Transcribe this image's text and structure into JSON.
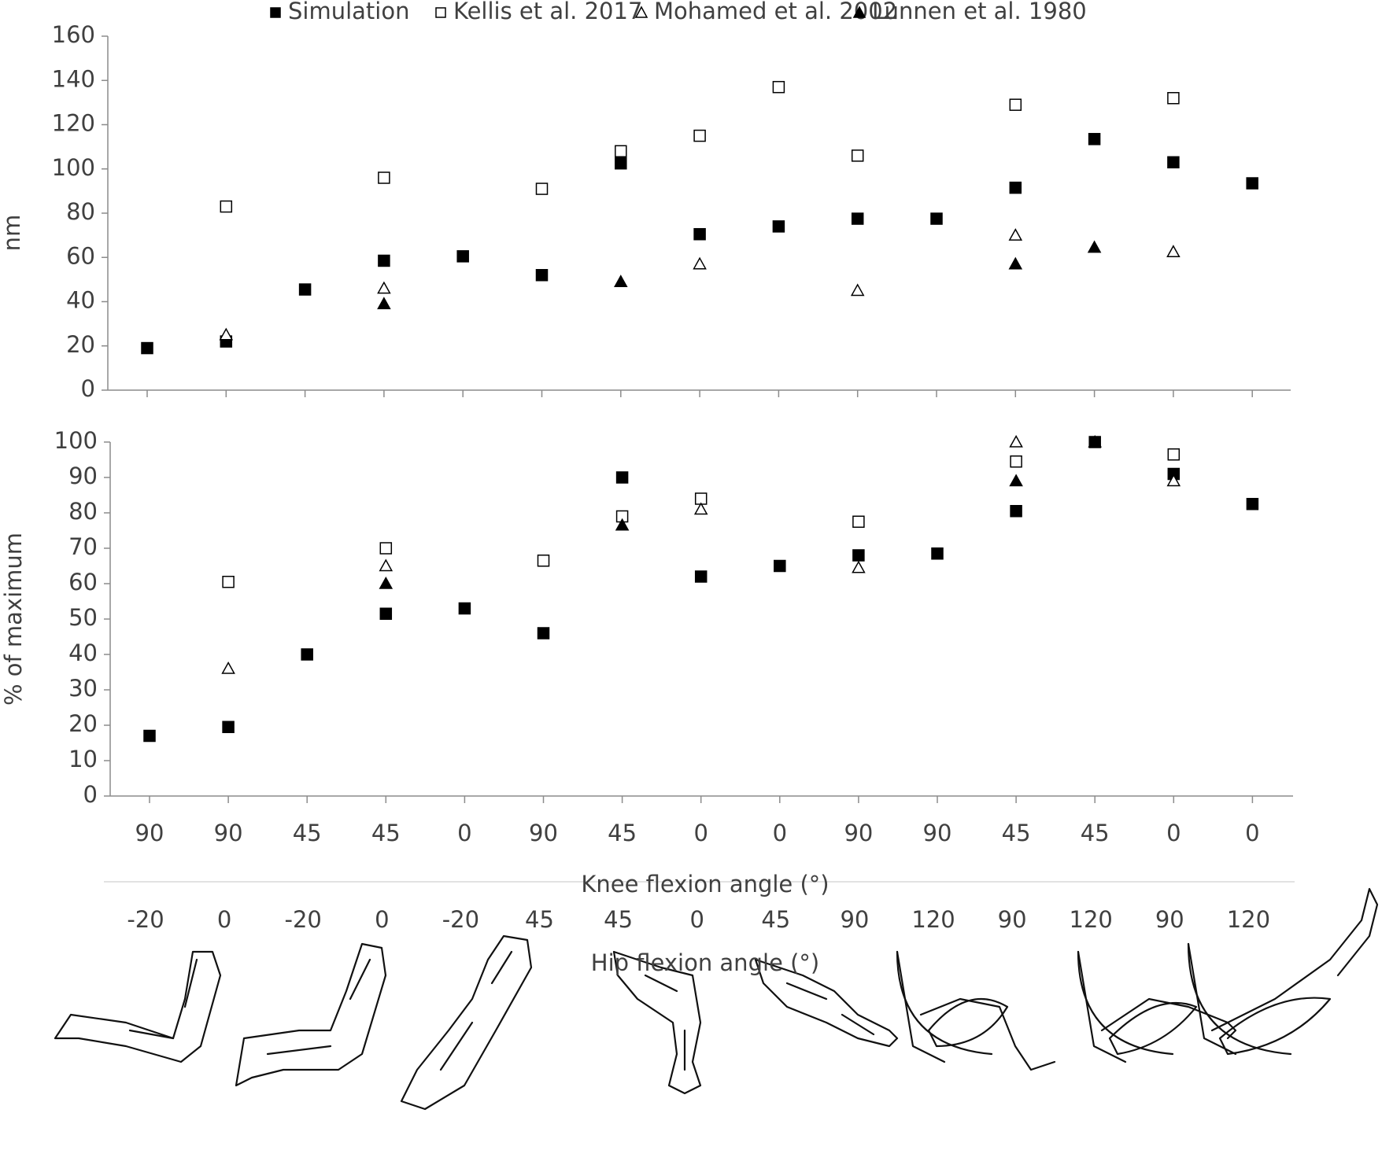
{
  "chart_data": [
    {
      "type": "scatter",
      "ylabel": "nm",
      "ylim": [
        0,
        160
      ],
      "yticks": [
        0,
        20,
        40,
        60,
        80,
        100,
        120,
        140,
        160
      ],
      "series": [
        {
          "name": "Simulation",
          "marker": "square-filled",
          "color": "#000000",
          "values": [
            19,
            22,
            45.5,
            58.5,
            60.5,
            52,
            102.5,
            70.5,
            74,
            77.5,
            77.5,
            91.5,
            113.5,
            103,
            93.5
          ]
        },
        {
          "name": "Kellis et al. 2017",
          "marker": "square-open",
          "color": "#000000",
          "values": [
            null,
            83,
            null,
            96,
            null,
            91,
            108,
            115,
            137,
            106,
            null,
            129,
            null,
            132,
            null
          ]
        },
        {
          "name": "Mohamed et al. 2002",
          "marker": "triangle-open",
          "color": "#000000",
          "values": [
            null,
            25,
            null,
            46,
            null,
            null,
            null,
            57,
            null,
            45,
            null,
            70,
            null,
            62.5,
            null
          ]
        },
        {
          "name": "Lunnen et al. 1980",
          "marker": "triangle-filled",
          "color": "#000000",
          "values": [
            null,
            null,
            null,
            39,
            null,
            null,
            49,
            null,
            null,
            null,
            null,
            57,
            64.5,
            null,
            null
          ]
        }
      ]
    },
    {
      "type": "scatter",
      "ylabel": "% of maximum",
      "xlabel": "Knee flexion angle (°)",
      "x2label": "Hip flexion angle (°)",
      "categories": [
        "90",
        "90",
        "45",
        "45",
        "0",
        "90",
        "45",
        "0",
        "0",
        "90",
        "90",
        "45",
        "45",
        "0",
        "0"
      ],
      "categories2": [
        "-20",
        "0",
        "-20",
        "0",
        "-20",
        "45",
        "45",
        "0",
        "45",
        "90",
        "120",
        "90",
        "120",
        "90",
        "120"
      ],
      "ylim": [
        0,
        100
      ],
      "yticks": [
        0,
        10,
        20,
        30,
        40,
        50,
        60,
        70,
        80,
        90,
        100
      ],
      "series": [
        {
          "marker": "square-filled",
          "color": "#000000",
          "values": [
            17,
            19.5,
            40,
            51.5,
            53,
            46,
            90,
            62,
            65,
            68,
            68.5,
            80.5,
            100,
            91,
            82.5
          ]
        },
        {
          "marker": "square-open",
          "color": "#000000",
          "values": [
            null,
            60.5,
            null,
            70,
            null,
            66.5,
            79,
            84,
            null,
            77.5,
            null,
            94.5,
            null,
            96.5,
            null
          ]
        },
        {
          "marker": "triangle-open",
          "color": "#000000",
          "values": [
            null,
            36,
            null,
            65,
            null,
            null,
            null,
            81,
            null,
            64.5,
            null,
            100,
            null,
            89,
            null
          ]
        },
        {
          "marker": "triangle-filled",
          "color": "#000000",
          "values": [
            null,
            null,
            null,
            60,
            null,
            null,
            76.5,
            null,
            null,
            null,
            null,
            89,
            100,
            null,
            null
          ]
        }
      ]
    }
  ]
}
